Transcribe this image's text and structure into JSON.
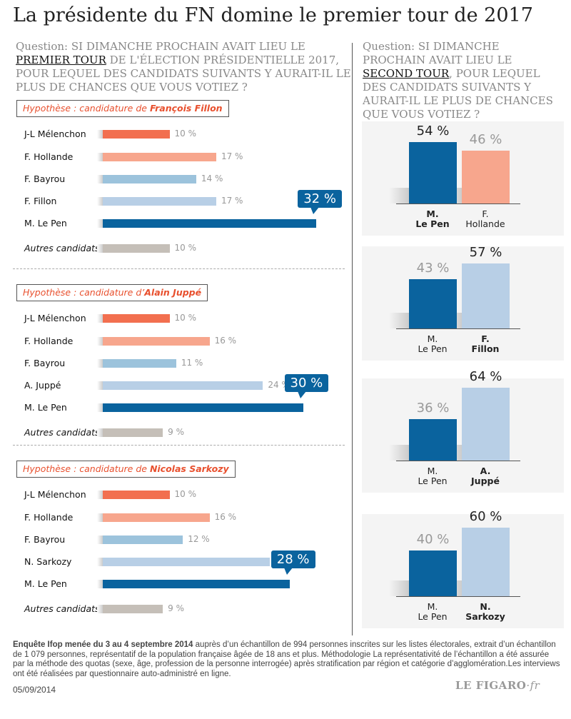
{
  "title": "La présidente du FN domine le premier tour de 2017",
  "question_first": {
    "before": "Question: SI DIMANCHE PROCHAIN AVAIT LIEU LE ",
    "highlight": "PREMIER TOUR",
    "after": " DE L'ÉLECTION PRÉSIDENTIELLE 2017, POUR LEQUEL DES CANDIDATS SUIVANTS Y AURAIT-IL LE PLUS DE CHANCES QUE VOUS VOTIEZ ?"
  },
  "question_second": {
    "before": "Question: SI DIMANCHE PROCHAIN AVAIT LIEU LE ",
    "highlight": "SECOND TOUR",
    "after": ", POUR LEQUEL DES CANDIDATS SUIVANTS Y AURAIT-IL LE PLUS DE CHANCES QUE VOUS VOTIEZ ?"
  },
  "colors": {
    "melenchon": "#f26f4f",
    "hollande": "#f7a68d",
    "bayrou": "#9cc3dc",
    "right": "#b8cfe6",
    "lepen": "#0a639e",
    "autres": "#c5bfb8"
  },
  "chart_data": [
    {
      "type": "bar",
      "orientation": "horizontal",
      "title_prefix": "Hypothèse : candidature de ",
      "title_name": "François Fillon",
      "categories": [
        "J-L Mélenchon",
        "F. Hollande",
        "F. Bayrou",
        "F. Fillon",
        "M. Le Pen",
        "Autres candidats"
      ],
      "values": [
        10,
        17,
        14,
        17,
        32,
        10
      ],
      "labels": [
        "10 %",
        "17 %",
        "14 %",
        "17 %",
        "32 %",
        "10 %"
      ],
      "unit": "%"
    },
    {
      "type": "bar",
      "orientation": "horizontal",
      "title_prefix": "Hypothèse : candidature d’",
      "title_name": "Alain Juppé",
      "categories": [
        "J-L Mélenchon",
        "F. Hollande",
        "F. Bayrou",
        "A. Juppé",
        "M. Le Pen",
        "Autres candidats"
      ],
      "values": [
        10,
        16,
        11,
        24,
        30,
        9
      ],
      "labels": [
        "10 %",
        "16 %",
        "11 %",
        "24 %",
        "30 %",
        "9 %"
      ],
      "unit": "%"
    },
    {
      "type": "bar",
      "orientation": "horizontal",
      "title_prefix": "Hypothèse : candidature de ",
      "title_name": "Nicolas Sarkozy",
      "categories": [
        "J-L Mélenchon",
        "F. Hollande",
        "F. Bayrou",
        "N. Sarkozy",
        "M. Le Pen",
        "Autres candidats"
      ],
      "values": [
        10,
        16,
        12,
        25,
        28,
        9
      ],
      "labels": [
        "10 %",
        "16 %",
        "12 %",
        "25 %",
        "28 %",
        "9 %"
      ],
      "unit": "%"
    },
    {
      "type": "bar",
      "categories": [
        [
          "M.",
          "Le Pen"
        ],
        [
          "F.",
          "Hollande"
        ]
      ],
      "values": [
        54,
        46
      ],
      "labels": [
        "54 %",
        "46 %"
      ],
      "winner": 0,
      "opponent_color": "#f7a68d"
    },
    {
      "type": "bar",
      "categories": [
        [
          "M.",
          "Le Pen"
        ],
        [
          "F.",
          "Fillon"
        ]
      ],
      "values": [
        43,
        57
      ],
      "labels": [
        "43 %",
        "57 %"
      ],
      "winner": 1,
      "opponent_color": "#b8cfe6"
    },
    {
      "type": "bar",
      "categories": [
        [
          "M.",
          "Le Pen"
        ],
        [
          "A.",
          "Juppé"
        ]
      ],
      "values": [
        36,
        64
      ],
      "labels": [
        "36 %",
        "64 %"
      ],
      "winner": 1,
      "opponent_color": "#b8cfe6"
    },
    {
      "type": "bar",
      "categories": [
        [
          "M.",
          "Le Pen"
        ],
        [
          "N.",
          "Sarkozy"
        ]
      ],
      "values": [
        40,
        60
      ],
      "labels": [
        "40 %",
        "60 %"
      ],
      "winner": 1,
      "opponent_color": "#b8cfe6"
    }
  ],
  "footer": {
    "note_bold": "Enquête Ifop menée du 3 au 4 septembre 2014",
    "note": " auprès d’un échantillon de 994 personnes inscrites sur les listes électorales, extrait d’un échantillon de 1 079 personnes, représentatif de la population française âgée de 18 ans et plus. Méthodologie La représentativité de l’échantillon a été assurée par la méthode des quotas (sexe, âge, profession de la personne interrogée) après stratification par région et catégorie d’agglomération.Les interviews ont été réalisées par questionnaire auto-administré en ligne.",
    "date": "05/09/2014",
    "logo": "LE FIGARO·fr"
  }
}
